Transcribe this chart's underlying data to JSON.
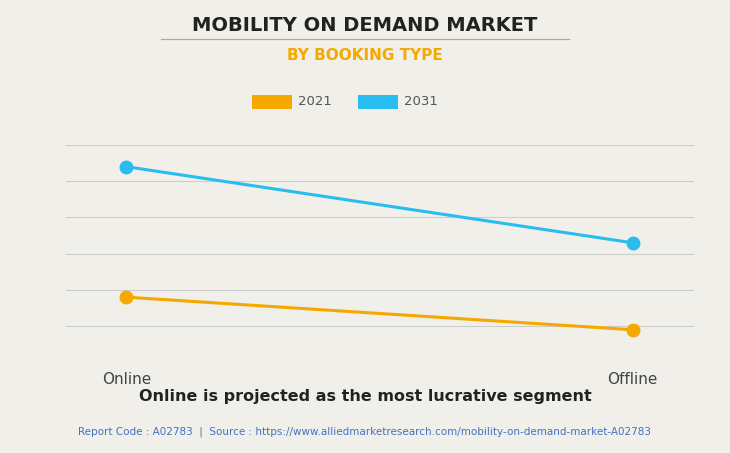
{
  "title": "MOBILITY ON DEMAND MARKET",
  "subtitle": "BY BOOKING TYPE",
  "categories": [
    "Online",
    "Offline"
  ],
  "series": [
    {
      "label": "2021",
      "values": [
        0.3,
        0.15
      ],
      "color": "#F5A800",
      "linewidth": 2.2,
      "markersize": 9
    },
    {
      "label": "2031",
      "values": [
        0.9,
        0.55
      ],
      "color": "#29BCEF",
      "linewidth": 2.2,
      "markersize": 9
    }
  ],
  "ylim": [
    0.0,
    1.0
  ],
  "background_color": "#F0EFEA",
  "plot_bg_color": "#F0EFEA",
  "grid_color": "#CCCCCC",
  "title_fontsize": 14,
  "subtitle_fontsize": 11,
  "subtitle_color": "#F5A800",
  "footer_text": "Report Code : A02783  |  Source : https://www.alliedmarketresearch.com/mobility-on-demand-market-A02783",
  "footer_color": "#4472C4",
  "bottom_label": "Online is projected as the most lucrative segment",
  "title_underline_color": "#AAAAAA",
  "legend_label_color": "#555555",
  "xtick_fontsize": 11,
  "n_grid_lines": 7
}
